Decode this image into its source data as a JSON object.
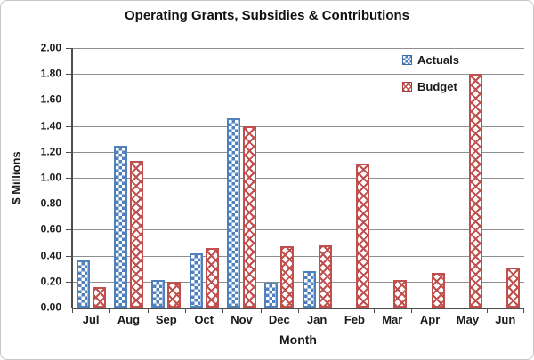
{
  "chart_data": {
    "type": "bar",
    "title": "Operating Grants, Subsidies & Contributions",
    "xlabel": "Month",
    "ylabel": "$ Millions",
    "categories": [
      "Jul",
      "Aug",
      "Sep",
      "Oct",
      "Nov",
      "Dec",
      "Jan",
      "Feb",
      "Mar",
      "Apr",
      "May",
      "Jun"
    ],
    "series": [
      {
        "name": "Actuals",
        "color": "#4F81BD",
        "pattern": "checkerboard",
        "values": [
          0.36,
          1.25,
          0.21,
          0.42,
          1.46,
          0.19,
          0.28,
          null,
          null,
          null,
          null,
          null
        ]
      },
      {
        "name": "Budget",
        "color": "#C0504D",
        "pattern": "diagonal-weave",
        "values": [
          0.16,
          1.13,
          0.2,
          0.46,
          1.4,
          0.47,
          0.48,
          1.11,
          0.21,
          0.27,
          1.8,
          0.31
        ]
      }
    ],
    "ylim": [
      0,
      2.0
    ],
    "y_tick_step": 0.2,
    "y_ticks": [
      "2.00",
      "1.80",
      "1.60",
      "1.40",
      "1.20",
      "1.00",
      "0.80",
      "0.60",
      "0.40",
      "0.20",
      "0.00"
    ],
    "grid": true,
    "legend_position": "top-right-inside"
  },
  "colors": {
    "actuals_blue": "#4F81BD",
    "budget_red": "#C0504D",
    "gridline_gray": "#8f8f8f",
    "axis_gray": "#4d4d4d",
    "border_gray": "#c6c6c6"
  }
}
